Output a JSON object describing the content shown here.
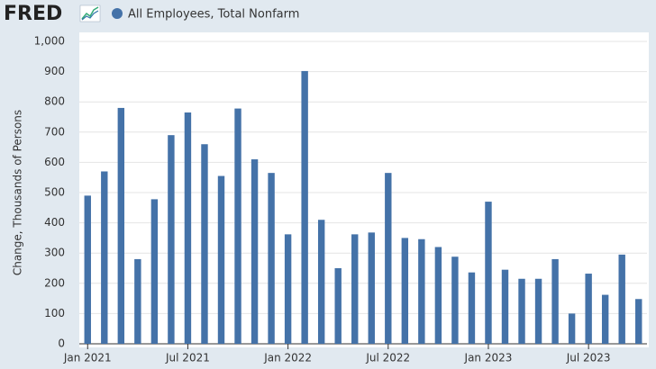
{
  "header": {
    "logo": "FRED"
  },
  "chart_data": {
    "type": "bar",
    "ylabel": "Change, Thousands of Persons",
    "categories": [
      "Jan 2021",
      null,
      null,
      null,
      null,
      null,
      "Jul 2021",
      null,
      null,
      null,
      null,
      null,
      "Jan 2022",
      null,
      null,
      null,
      null,
      null,
      "Jul 2022",
      null,
      null,
      null,
      null,
      null,
      "Jan 2023",
      null,
      null,
      null,
      null,
      null,
      "Jul 2023",
      null,
      null,
      null
    ],
    "series": [
      {
        "name": "All Employees, Total Nonfarm",
        "color": "#4472a8",
        "values": [
          490,
          570,
          780,
          280,
          478,
          690,
          765,
          660,
          555,
          778,
          610,
          565,
          362,
          902,
          410,
          250,
          362,
          368,
          565,
          350,
          346,
          320,
          288,
          236,
          470,
          245,
          215,
          215,
          280,
          100,
          232,
          162,
          295,
          148
        ]
      }
    ],
    "ylim": [
      0,
      1000
    ],
    "yticks": [
      0,
      100,
      200,
      300,
      400,
      500,
      600,
      700,
      800,
      900,
      {
        "value": 1000,
        "label": "1,000"
      }
    ],
    "grid": true
  }
}
